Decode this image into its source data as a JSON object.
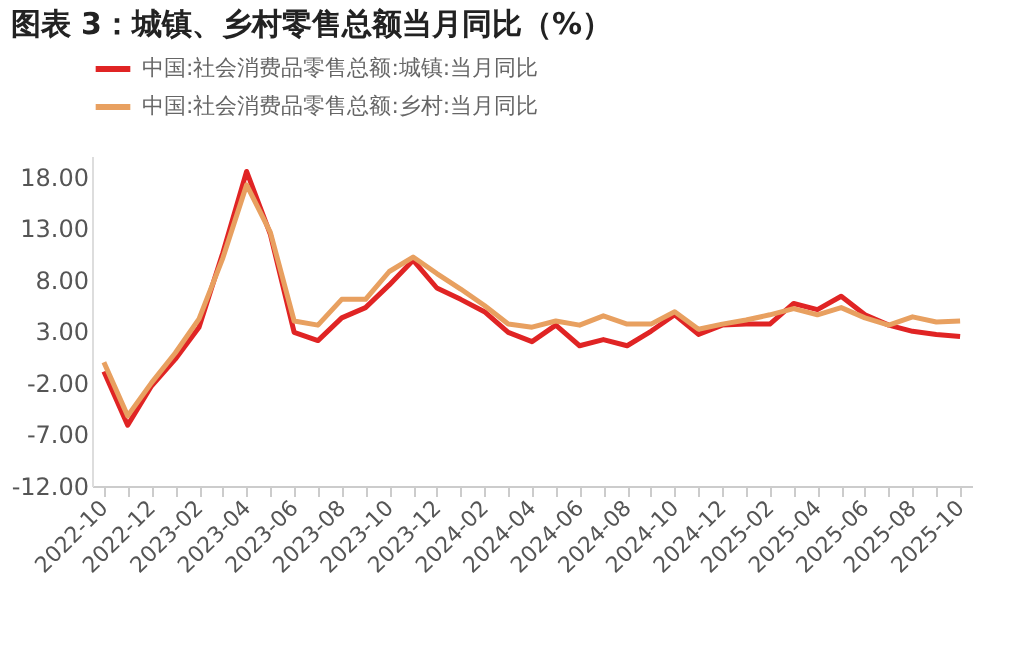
{
  "chart_data": {
    "type": "line",
    "title": "图表 3：城镇、乡村零售总额当月同比（%）",
    "categories": [
      "2022-10",
      null,
      "2022-12",
      null,
      "2023-02",
      null,
      "2023-04",
      null,
      "2023-06",
      null,
      "2023-08",
      null,
      "2023-10",
      null,
      "2023-12",
      null,
      "2024-02",
      null,
      "2024-04",
      null,
      "2024-06",
      null,
      "2024-08",
      null,
      "2024-10",
      null,
      "2024-12",
      null,
      "2025-02",
      null,
      "2025-04",
      null,
      "2025-06",
      null,
      "2025-08",
      null,
      "2025-10"
    ],
    "series": [
      {
        "name": "中国:社会消费品零售总额:城镇:当月同比",
        "color": "#e02424",
        "values": [
          -0.9,
          -6.1,
          -2.3,
          0.3,
          3.4,
          10.6,
          18.5,
          12.4,
          2.9,
          2.1,
          4.3,
          5.3,
          7.5,
          9.9,
          7.2,
          6.1,
          4.9,
          2.9,
          2.0,
          3.6,
          1.6,
          2.2,
          1.6,
          3.0,
          4.6,
          2.7,
          3.6,
          3.7,
          3.7,
          5.7,
          5.1,
          6.4,
          4.6,
          3.6,
          3.0,
          2.7,
          2.5
        ]
      },
      {
        "name": "中国:社会消费品零售总额:乡村:当月同比",
        "color": "#e8a060",
        "values": [
          0.0,
          -5.2,
          -2.0,
          0.9,
          4.2,
          10.1,
          17.2,
          12.6,
          4.0,
          3.6,
          6.1,
          6.1,
          8.8,
          10.2,
          8.6,
          7.1,
          5.5,
          3.7,
          3.4,
          4.0,
          3.6,
          4.5,
          3.7,
          3.7,
          4.9,
          3.2,
          3.7,
          4.1,
          4.6,
          5.2,
          4.6,
          5.3,
          4.3,
          3.6,
          4.4,
          3.9,
          4.0
        ]
      }
    ],
    "ylim": [
      -12,
      20
    ],
    "yticks": [
      {
        "value": -12,
        "label": "-12.00"
      },
      {
        "value": -7,
        "label": "-7.00"
      },
      {
        "value": -2,
        "label": "-2.00"
      },
      {
        "value": 3,
        "label": "3.00"
      },
      {
        "value": 8,
        "label": "8.00"
      },
      {
        "value": 13,
        "label": "13.00"
      },
      {
        "value": 18,
        "label": "18.00"
      }
    ],
    "grid": false,
    "legend": "top",
    "marker": "none",
    "line_style": "solid"
  }
}
